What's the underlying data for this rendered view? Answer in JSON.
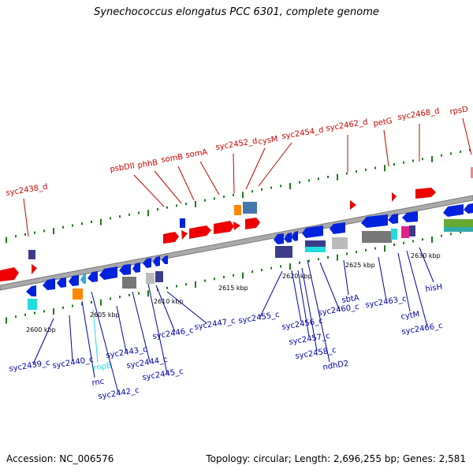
{
  "title": "Synechococcus elongatus PCC 6301, complete genome",
  "footer": {
    "accession": "Accession: NC_006576",
    "topology": "Topology: circular; Length: 2,696,255 bp; Genes: 2,581"
  },
  "colors": {
    "forward_label": "#cc0000",
    "reverse_label": "#0000aa",
    "tick": "#1f7a1f",
    "backbone": "#888888",
    "red": "#ee0000",
    "blue": "#0022dd",
    "navy": "#3b3b8a",
    "cyan": "#22dddd",
    "orange": "#ff8800",
    "gray": "#777777"
  },
  "scale_labels": [
    "2600 kbp",
    "2605 kbp",
    "2610 kbp",
    "2615 kbp",
    "2620 kbp",
    "2625 kbp",
    "2630 kbp"
  ],
  "forward_labels": [
    "syc2438_d",
    "psbDII",
    "phhB",
    "somB",
    "somA",
    "syc2452_d",
    "cysM",
    "syc2454_d",
    "syc2462_d",
    "petG",
    "syc2468_d",
    "rpsD"
  ],
  "reverse_labels": [
    "syc2439_c",
    "syc2440_c",
    "rnc",
    "rnpB",
    "syc2442_c",
    "syc2443_c",
    "syc2444_c",
    "syc2445_c",
    "syc2446_c",
    "syc2447_c",
    "syc2455_c",
    "syc2456_c",
    "syc2457_c",
    "syc2458_c",
    "ndhD2",
    "syc2460_c",
    "sbtA",
    "syc2463_c",
    "cytM",
    "syc2466_c",
    "hisH"
  ]
}
